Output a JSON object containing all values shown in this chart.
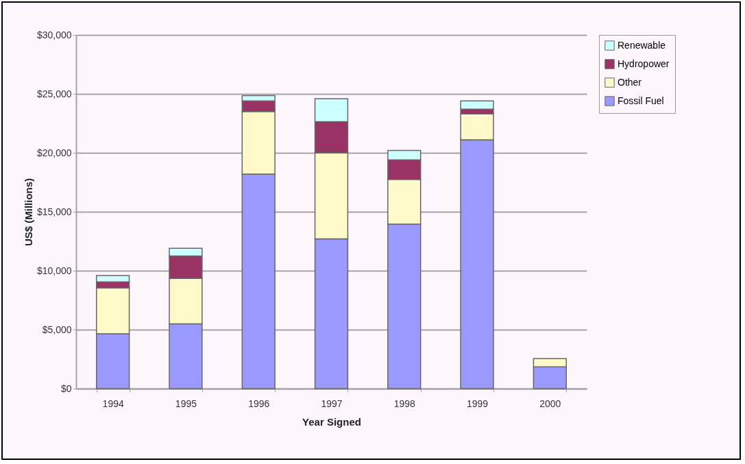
{
  "chart_data": {
    "type": "bar",
    "stacked": true,
    "xlabel": "Year Signed",
    "ylabel": "US$ (Millions)",
    "categories": [
      "1994",
      "1995",
      "1996",
      "1997",
      "1998",
      "1999",
      "2000"
    ],
    "series": [
      {
        "name": "Fossil Fuel",
        "color": "#9999ff",
        "values": [
          4650,
          5500,
          18200,
          12700,
          13950,
          21100,
          1850
        ]
      },
      {
        "name": "Other",
        "color": "#fff8c8",
        "values": [
          3900,
          3850,
          5300,
          7300,
          3800,
          2200,
          700
        ]
      },
      {
        "name": "Hydropower",
        "color": "#993366",
        "values": [
          500,
          1900,
          900,
          2650,
          1650,
          400,
          0
        ]
      },
      {
        "name": "Renewable",
        "color": "#ccffff",
        "values": [
          550,
          650,
          450,
          1950,
          800,
          700,
          0
        ]
      }
    ],
    "ylim": [
      0,
      30000
    ],
    "yticks": [
      {
        "value": 0,
        "label": "$0"
      },
      {
        "value": 5000,
        "label": "$5,000"
      },
      {
        "value": 10000,
        "label": "$10,000"
      },
      {
        "value": 15000,
        "label": "$15,000"
      },
      {
        "value": 20000,
        "label": "$20,000"
      },
      {
        "value": 25000,
        "label": "$25,000"
      },
      {
        "value": 30000,
        "label": "$30,000"
      }
    ],
    "grid": "y",
    "legend": "right"
  }
}
